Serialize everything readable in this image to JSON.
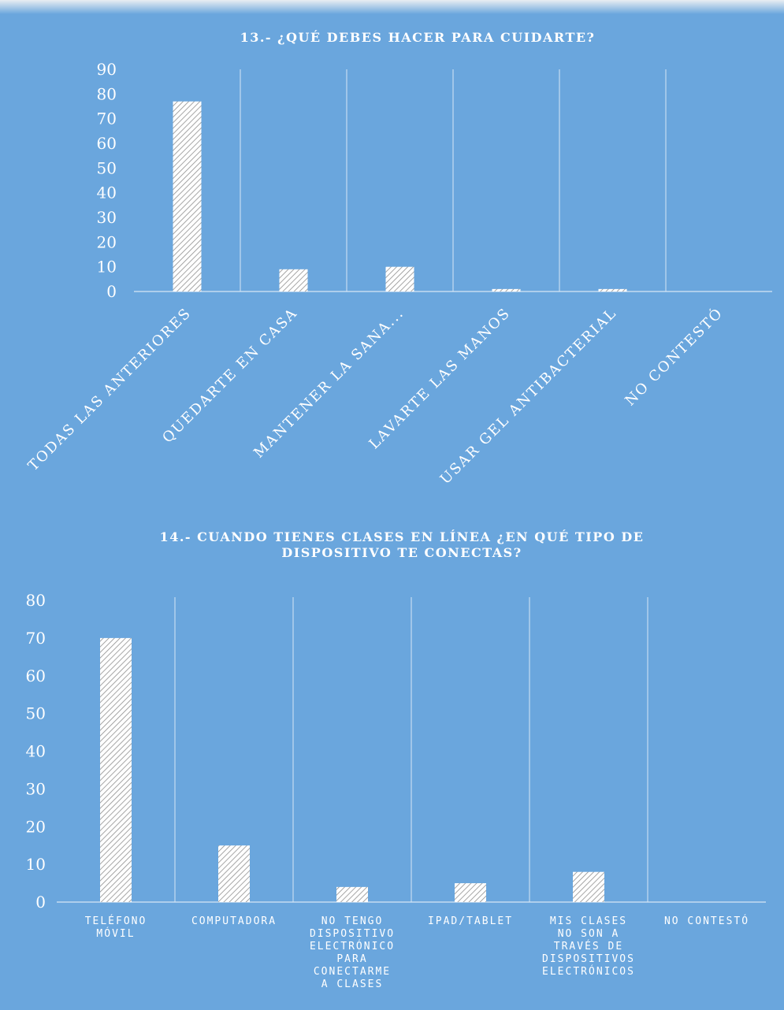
{
  "colors": {
    "background": "#6aa6dd",
    "bar_fill": "#ffffff",
    "bar_hatch": "#8f8f8f",
    "grid": "#d6e6f5"
  },
  "chart_data": [
    {
      "type": "bar",
      "title": "13.- ¿QUÉ DEBES HACER PARA CUIDARTE?",
      "categories": [
        "TODAS LAS ANTERIORES",
        "QUEDARTE EN CASA",
        "MANTENER LA SANA...",
        "LAVARTE LAS MANOS",
        "USAR GEL ANTIBACTERIAL",
        "NO CONTESTÓ"
      ],
      "values": [
        77,
        9,
        10,
        1,
        1,
        0
      ],
      "yticks": [
        "0",
        "10",
        "20",
        "30",
        "40",
        "50",
        "60",
        "70",
        "80",
        "90"
      ],
      "ylim": [
        0,
        90
      ],
      "grid": "vertical separators",
      "legend": "none"
    },
    {
      "type": "bar",
      "title": "14.- CUANDO TIENES CLASES EN LÍNEA ¿EN QUÉ TIPO DE DISPOSITIVO TE CONECTAS?",
      "categories": [
        [
          "TELÉFONO",
          "MÓVIL"
        ],
        [
          "COMPUTADORA"
        ],
        [
          "NO TENGO",
          "DISPOSITIVO",
          "ELECTRÓNICO",
          "PARA",
          "CONECTARME",
          "A CLASES"
        ],
        [
          "IPAD/TABLET"
        ],
        [
          "MIS CLASES",
          "NO SON A",
          "TRAVÉS DE",
          "DISPOSITIVOS",
          "ELECTRÓNICOS"
        ],
        [
          "NO CONTESTÓ"
        ]
      ],
      "values": [
        70,
        15,
        4,
        5,
        8,
        0
      ],
      "yticks": [
        "0",
        "10",
        "20",
        "30",
        "40",
        "50",
        "60",
        "70",
        "80"
      ],
      "ylim": [
        0,
        80
      ],
      "grid": "vertical separators",
      "legend": "none"
    }
  ]
}
